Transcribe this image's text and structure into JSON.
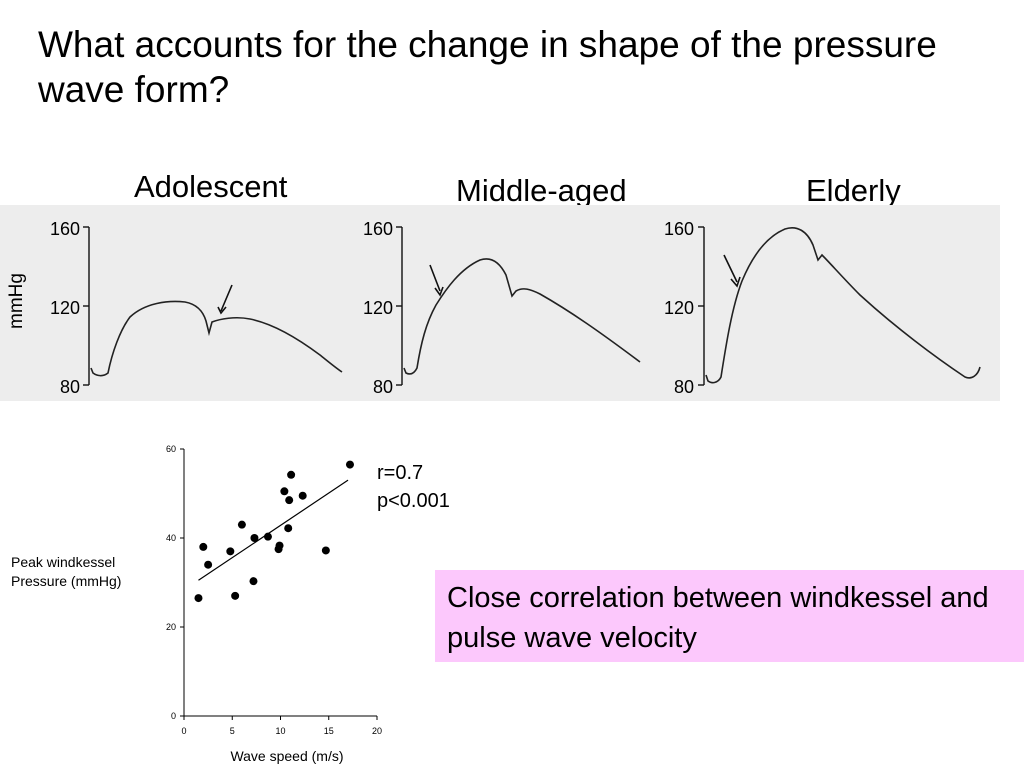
{
  "slide": {
    "title": "What accounts for the change in shape of the pressure wave form?",
    "callout": "Close correlation between windkessel and pulse wave velocity",
    "colors": {
      "callout_bg": "#fcc8fc",
      "strip_bg": "#ededed",
      "ink": "#000000"
    }
  },
  "waveforms": {
    "yunit": "mmHg",
    "ticks": [
      "160",
      "120",
      "80"
    ],
    "panels": [
      {
        "label": "Adolescent"
      },
      {
        "label": "Middle-aged"
      },
      {
        "label": "Elderly"
      }
    ]
  },
  "chart_data": {
    "type": "scatter",
    "title": "",
    "xlabel": "Wave speed (m/s)",
    "ylabel": "Peak windkessel Pressure (mmHg)",
    "ylabel_lines": [
      "Peak windkessel",
      "Pressure (mmHg)"
    ],
    "xlim": [
      0,
      20
    ],
    "ylim": [
      0,
      60
    ],
    "xticks": [
      "0",
      "5",
      "10",
      "15",
      "20"
    ],
    "yticks": [
      "0",
      "20",
      "40",
      "60"
    ],
    "grid": false,
    "annotations": [
      "r=0.7",
      "p<0.001"
    ],
    "trendline": {
      "x": [
        1.5,
        17
      ],
      "y": [
        30.5,
        53
      ]
    },
    "points": [
      {
        "x": 1.5,
        "y": 26.5
      },
      {
        "x": 2.0,
        "y": 38.0
      },
      {
        "x": 2.5,
        "y": 34.0
      },
      {
        "x": 4.8,
        "y": 37.0
      },
      {
        "x": 5.3,
        "y": 27.0
      },
      {
        "x": 6.0,
        "y": 43.0
      },
      {
        "x": 7.2,
        "y": 30.3
      },
      {
        "x": 7.3,
        "y": 40.0
      },
      {
        "x": 8.7,
        "y": 40.3
      },
      {
        "x": 9.8,
        "y": 37.5
      },
      {
        "x": 9.9,
        "y": 38.3
      },
      {
        "x": 10.4,
        "y": 50.5
      },
      {
        "x": 10.8,
        "y": 42.2
      },
      {
        "x": 10.9,
        "y": 48.5
      },
      {
        "x": 11.1,
        "y": 54.2
      },
      {
        "x": 12.3,
        "y": 49.5
      },
      {
        "x": 14.7,
        "y": 37.2
      },
      {
        "x": 17.2,
        "y": 56.5
      }
    ]
  }
}
